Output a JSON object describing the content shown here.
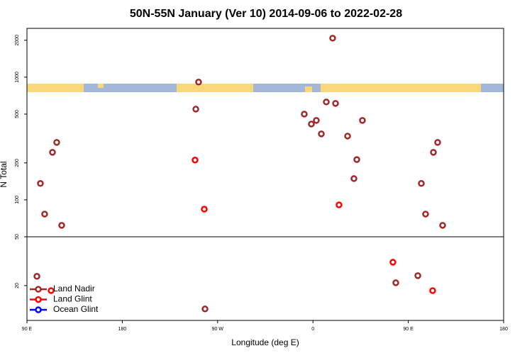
{
  "chart_data": {
    "type": "scatter",
    "title": "50N-55N January (Ver 10)   2014-09-06 to 2022-02-28",
    "xlabel": "Longitude (deg E)",
    "ylabel": "N Total",
    "xlim": [
      90,
      540
    ],
    "xticks": [
      {
        "value": 90,
        "label": "90 E"
      },
      {
        "value": 180,
        "label": "180"
      },
      {
        "value": 270,
        "label": "90 W"
      },
      {
        "value": 360,
        "label": "0"
      },
      {
        "value": 450,
        "label": "90 E"
      },
      {
        "value": 540,
        "label": "180"
      }
    ],
    "ylim": [
      10.4,
      2500
    ],
    "log_y": true,
    "yticks": [
      20,
      50,
      100,
      200,
      500,
      1000,
      2000
    ],
    "hline": 50,
    "legend": "lower left",
    "series": [
      {
        "name": "Land Nadir",
        "color": "#a0282a",
        "x": [
          99.4,
          102.7,
          106.7,
          114.1,
          118.1,
          122.8,
          252,
          249.4,
          258.1,
          378.6,
          351.8,
          358.5,
          363.2,
          367.9,
          372.6,
          381.3,
          392.7,
          401.4,
          406.7,
          398.7,
          438.2,
          459,
          462.3,
          466.3,
          473.7,
          477.7,
          482.4
        ],
        "values": [
          23.8,
          136,
          76.6,
          244,
          294,
          62,
          912,
          549,
          12.9,
          2080,
          500,
          415,
          444,
          345,
          628,
          611,
          331,
          213,
          444,
          149,
          21.1,
          24.1,
          136,
          76.6,
          244,
          294,
          62
        ]
      },
      {
        "name": "Land Glint",
        "color": "#ff0000",
        "x": [
          112.8,
          248.7,
          257.4,
          384.6,
          435.5,
          473
        ],
        "values": [
          18.2,
          211,
          84,
          91,
          31,
          18.2
        ]
      },
      {
        "name": "Ocean Glint",
        "color": "#0000ff",
        "x": [],
        "values": []
      }
    ]
  }
}
